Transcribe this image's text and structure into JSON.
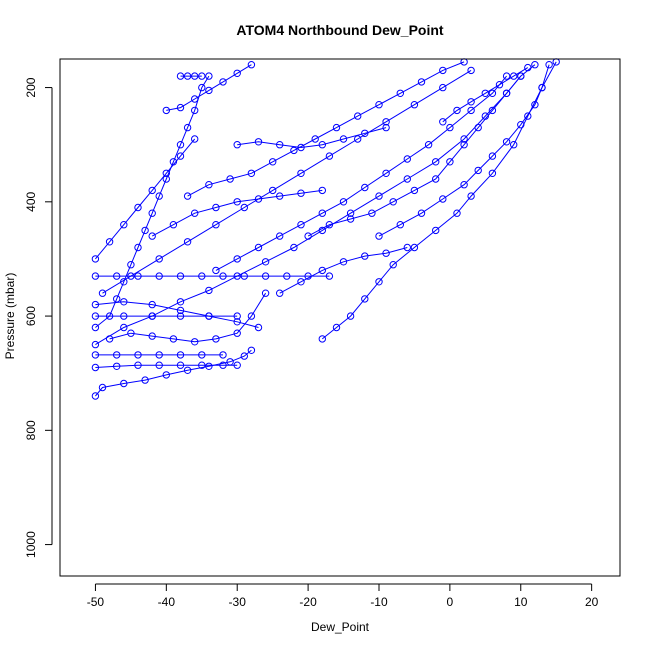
{
  "chart_data": {
    "type": "scatter",
    "title": "ATOM4 Northbound Dew_Point",
    "xlabel": "Dew_Point",
    "ylabel": "Pressure (mbar)",
    "xlim": [
      -55,
      24
    ],
    "ylim": [
      1055,
      150
    ],
    "y_reversed": true,
    "x_ticks": [
      -50,
      -40,
      -30,
      -20,
      -10,
      0,
      10,
      20
    ],
    "y_ticks": [
      200,
      400,
      600,
      800,
      1000
    ],
    "grid": false,
    "legend": "none",
    "point_style": "open-circle",
    "connected": true,
    "color": "#0000ff",
    "series": [
      {
        "values": [
          {
            "x": -50,
            "y": 740
          },
          {
            "x": -49,
            "y": 725
          },
          {
            "x": -46,
            "y": 718
          },
          {
            "x": -43,
            "y": 712
          },
          {
            "x": -40,
            "y": 703
          },
          {
            "x": -37,
            "y": 695
          },
          {
            "x": -34,
            "y": 688
          },
          {
            "x": -31,
            "y": 680
          },
          {
            "x": -29,
            "y": 670
          },
          {
            "x": -28,
            "y": 660
          }
        ]
      },
      {
        "values": [
          {
            "x": -50,
            "y": 690
          },
          {
            "x": -47,
            "y": 688
          },
          {
            "x": -44,
            "y": 686
          },
          {
            "x": -41,
            "y": 686
          },
          {
            "x": -38,
            "y": 686
          },
          {
            "x": -35,
            "y": 686
          },
          {
            "x": -32,
            "y": 686
          },
          {
            "x": -30,
            "y": 686
          }
        ]
      },
      {
        "values": [
          {
            "x": -50,
            "y": 668
          },
          {
            "x": -47,
            "y": 668
          },
          {
            "x": -44,
            "y": 668
          },
          {
            "x": -41,
            "y": 668
          },
          {
            "x": -38,
            "y": 668
          },
          {
            "x": -35,
            "y": 668
          },
          {
            "x": -32,
            "y": 668
          }
        ]
      },
      {
        "values": [
          {
            "x": -50,
            "y": 650
          },
          {
            "x": -46,
            "y": 620
          },
          {
            "x": -42,
            "y": 600
          },
          {
            "x": -38,
            "y": 575
          },
          {
            "x": -34,
            "y": 555
          },
          {
            "x": -30,
            "y": 530
          },
          {
            "x": -26,
            "y": 505
          },
          {
            "x": -22,
            "y": 480
          },
          {
            "x": -18,
            "y": 450
          },
          {
            "x": -14,
            "y": 420
          },
          {
            "x": -10,
            "y": 390
          },
          {
            "x": -6,
            "y": 360
          },
          {
            "x": -2,
            "y": 330
          },
          {
            "x": 2,
            "y": 290
          },
          {
            "x": 5,
            "y": 250
          },
          {
            "x": 8,
            "y": 210
          },
          {
            "x": 10,
            "y": 180
          }
        ]
      },
      {
        "values": [
          {
            "x": -18,
            "y": 640
          },
          {
            "x": -16,
            "y": 620
          },
          {
            "x": -14,
            "y": 600
          },
          {
            "x": -12,
            "y": 570
          },
          {
            "x": -10,
            "y": 540
          },
          {
            "x": -8,
            "y": 510
          },
          {
            "x": -5,
            "y": 480
          },
          {
            "x": -2,
            "y": 450
          },
          {
            "x": 1,
            "y": 420
          },
          {
            "x": 3,
            "y": 390
          },
          {
            "x": 6,
            "y": 350
          },
          {
            "x": 9,
            "y": 300
          },
          {
            "x": 11,
            "y": 250
          },
          {
            "x": 13,
            "y": 200
          },
          {
            "x": 14,
            "y": 160
          }
        ]
      },
      {
        "values": [
          {
            "x": -50,
            "y": 620
          },
          {
            "x": -48,
            "y": 600
          },
          {
            "x": -47,
            "y": 570
          },
          {
            "x": -46,
            "y": 540
          },
          {
            "x": -45,
            "y": 510
          },
          {
            "x": -44,
            "y": 480
          },
          {
            "x": -43,
            "y": 450
          },
          {
            "x": -42,
            "y": 420
          },
          {
            "x": -41,
            "y": 390
          },
          {
            "x": -40,
            "y": 360
          },
          {
            "x": -39,
            "y": 330
          },
          {
            "x": -38,
            "y": 300
          },
          {
            "x": -37,
            "y": 270
          },
          {
            "x": -36,
            "y": 240
          },
          {
            "x": -35,
            "y": 200
          },
          {
            "x": -34,
            "y": 180
          }
        ]
      },
      {
        "values": [
          {
            "x": -38,
            "y": 180
          },
          {
            "x": -37,
            "y": 180
          },
          {
            "x": -36,
            "y": 180
          },
          {
            "x": -35,
            "y": 180
          }
        ]
      },
      {
        "values": [
          {
            "x": -49,
            "y": 560
          },
          {
            "x": -45,
            "y": 530
          },
          {
            "x": -41,
            "y": 500
          },
          {
            "x": -37,
            "y": 470
          },
          {
            "x": -33,
            "y": 440
          },
          {
            "x": -29,
            "y": 410
          },
          {
            "x": -25,
            "y": 380
          },
          {
            "x": -21,
            "y": 350
          },
          {
            "x": -17,
            "y": 320
          },
          {
            "x": -13,
            "y": 290
          },
          {
            "x": -9,
            "y": 260
          },
          {
            "x": -5,
            "y": 230
          },
          {
            "x": -1,
            "y": 200
          },
          {
            "x": 3,
            "y": 170
          }
        ]
      },
      {
        "values": [
          {
            "x": -50,
            "y": 530
          },
          {
            "x": -47,
            "y": 530
          },
          {
            "x": -44,
            "y": 530
          },
          {
            "x": -41,
            "y": 530
          },
          {
            "x": -38,
            "y": 530
          },
          {
            "x": -35,
            "y": 530
          },
          {
            "x": -32,
            "y": 530
          },
          {
            "x": -29,
            "y": 530
          },
          {
            "x": -26,
            "y": 530
          },
          {
            "x": -23,
            "y": 530
          },
          {
            "x": -20,
            "y": 530
          },
          {
            "x": -17,
            "y": 530
          }
        ]
      },
      {
        "values": [
          {
            "x": -50,
            "y": 580
          },
          {
            "x": -46,
            "y": 575
          },
          {
            "x": -42,
            "y": 580
          },
          {
            "x": -38,
            "y": 590
          },
          {
            "x": -34,
            "y": 600
          },
          {
            "x": -30,
            "y": 610
          },
          {
            "x": -27,
            "y": 620
          }
        ]
      },
      {
        "values": [
          {
            "x": -48,
            "y": 640
          },
          {
            "x": -45,
            "y": 630
          },
          {
            "x": -42,
            "y": 635
          },
          {
            "x": -39,
            "y": 640
          },
          {
            "x": -36,
            "y": 645
          },
          {
            "x": -33,
            "y": 640
          },
          {
            "x": -30,
            "y": 630
          },
          {
            "x": -28,
            "y": 600
          },
          {
            "x": -26,
            "y": 560
          }
        ]
      },
      {
        "values": [
          {
            "x": -37,
            "y": 390
          },
          {
            "x": -34,
            "y": 370
          },
          {
            "x": -31,
            "y": 360
          },
          {
            "x": -28,
            "y": 350
          },
          {
            "x": -25,
            "y": 330
          },
          {
            "x": -22,
            "y": 310
          },
          {
            "x": -19,
            "y": 290
          },
          {
            "x": -16,
            "y": 270
          },
          {
            "x": -13,
            "y": 250
          },
          {
            "x": -10,
            "y": 230
          },
          {
            "x": -7,
            "y": 210
          },
          {
            "x": -4,
            "y": 190
          },
          {
            "x": -1,
            "y": 170
          },
          {
            "x": 2,
            "y": 155
          }
        ]
      },
      {
        "values": [
          {
            "x": -42,
            "y": 460
          },
          {
            "x": -39,
            "y": 440
          },
          {
            "x": -36,
            "y": 420
          },
          {
            "x": -33,
            "y": 410
          },
          {
            "x": -30,
            "y": 400
          },
          {
            "x": -27,
            "y": 395
          },
          {
            "x": -24,
            "y": 390
          },
          {
            "x": -21,
            "y": 385
          },
          {
            "x": -18,
            "y": 380
          }
        ]
      },
      {
        "values": [
          {
            "x": -30,
            "y": 300
          },
          {
            "x": -27,
            "y": 295
          },
          {
            "x": -24,
            "y": 300
          },
          {
            "x": -21,
            "y": 305
          },
          {
            "x": -18,
            "y": 300
          },
          {
            "x": -15,
            "y": 290
          },
          {
            "x": -12,
            "y": 280
          },
          {
            "x": -9,
            "y": 270
          }
        ]
      },
      {
        "values": [
          {
            "x": -40,
            "y": 240
          },
          {
            "x": -38,
            "y": 235
          },
          {
            "x": -36,
            "y": 220
          },
          {
            "x": -34,
            "y": 205
          },
          {
            "x": -32,
            "y": 190
          },
          {
            "x": -30,
            "y": 175
          },
          {
            "x": -28,
            "y": 160
          }
        ]
      },
      {
        "values": [
          {
            "x": -20,
            "y": 460
          },
          {
            "x": -17,
            "y": 440
          },
          {
            "x": -14,
            "y": 430
          },
          {
            "x": -11,
            "y": 420
          },
          {
            "x": -8,
            "y": 400
          },
          {
            "x": -5,
            "y": 380
          },
          {
            "x": -2,
            "y": 360
          },
          {
            "x": 0,
            "y": 330
          },
          {
            "x": 2,
            "y": 300
          },
          {
            "x": 4,
            "y": 270
          },
          {
            "x": 6,
            "y": 240
          },
          {
            "x": 8,
            "y": 210
          },
          {
            "x": 10,
            "y": 180
          },
          {
            "x": 12,
            "y": 160
          }
        ]
      },
      {
        "values": [
          {
            "x": -10,
            "y": 460
          },
          {
            "x": -7,
            "y": 440
          },
          {
            "x": -4,
            "y": 420
          },
          {
            "x": -1,
            "y": 395
          },
          {
            "x": 2,
            "y": 370
          },
          {
            "x": 4,
            "y": 345
          },
          {
            "x": 6,
            "y": 320
          },
          {
            "x": 8,
            "y": 295
          },
          {
            "x": 10,
            "y": 265
          },
          {
            "x": 12,
            "y": 230
          },
          {
            "x": 13,
            "y": 200
          },
          {
            "x": 15,
            "y": 155
          }
        ]
      },
      {
        "values": [
          {
            "x": -50,
            "y": 500
          },
          {
            "x": -48,
            "y": 470
          },
          {
            "x": -46,
            "y": 440
          },
          {
            "x": -44,
            "y": 410
          },
          {
            "x": -42,
            "y": 380
          },
          {
            "x": -40,
            "y": 350
          },
          {
            "x": -38,
            "y": 320
          },
          {
            "x": -36,
            "y": 290
          }
        ]
      },
      {
        "values": [
          {
            "x": -33,
            "y": 520
          },
          {
            "x": -30,
            "y": 500
          },
          {
            "x": -27,
            "y": 480
          },
          {
            "x": -24,
            "y": 460
          },
          {
            "x": -21,
            "y": 440
          },
          {
            "x": -18,
            "y": 420
          },
          {
            "x": -15,
            "y": 400
          },
          {
            "x": -12,
            "y": 375
          },
          {
            "x": -9,
            "y": 350
          },
          {
            "x": -6,
            "y": 325
          },
          {
            "x": -3,
            "y": 300
          },
          {
            "x": 0,
            "y": 270
          },
          {
            "x": 3,
            "y": 240
          },
          {
            "x": 6,
            "y": 210
          },
          {
            "x": 8,
            "y": 180
          }
        ]
      },
      {
        "values": [
          {
            "x": -50,
            "y": 600
          },
          {
            "x": -46,
            "y": 600
          },
          {
            "x": -42,
            "y": 600
          },
          {
            "x": -38,
            "y": 600
          },
          {
            "x": -34,
            "y": 600
          },
          {
            "x": -30,
            "y": 600
          }
        ]
      },
      {
        "values": [
          {
            "x": -24,
            "y": 560
          },
          {
            "x": -21,
            "y": 540
          },
          {
            "x": -18,
            "y": 520
          },
          {
            "x": -15,
            "y": 505
          },
          {
            "x": -12,
            "y": 495
          },
          {
            "x": -9,
            "y": 490
          },
          {
            "x": -6,
            "y": 480
          }
        ]
      },
      {
        "values": [
          {
            "x": -1,
            "y": 260
          },
          {
            "x": 1,
            "y": 240
          },
          {
            "x": 3,
            "y": 225
          },
          {
            "x": 5,
            "y": 210
          },
          {
            "x": 7,
            "y": 195
          },
          {
            "x": 9,
            "y": 180
          },
          {
            "x": 11,
            "y": 165
          }
        ]
      }
    ]
  }
}
